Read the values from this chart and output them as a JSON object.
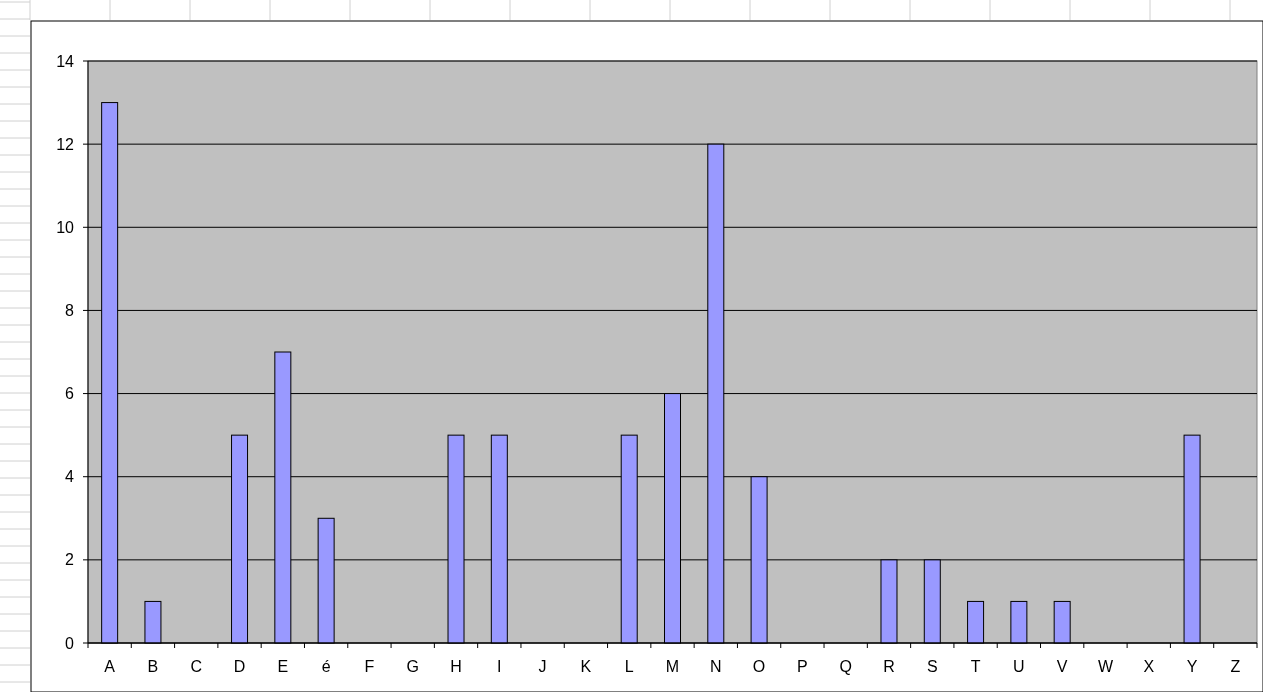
{
  "chart_data": {
    "type": "bar",
    "categories": [
      "A",
      "B",
      "C",
      "D",
      "E",
      "é",
      "F",
      "G",
      "H",
      "I",
      "J",
      "K",
      "L",
      "M",
      "N",
      "O",
      "P",
      "Q",
      "R",
      "S",
      "T",
      "U",
      "V",
      "W",
      "X",
      "Y",
      "Z"
    ],
    "values": [
      13,
      1,
      0,
      5,
      7,
      3,
      0,
      0,
      5,
      5,
      0,
      0,
      5,
      6,
      12,
      4,
      0,
      0,
      2,
      2,
      1,
      1,
      1,
      0,
      0,
      5,
      0
    ],
    "color": "#9999ff",
    "ylim": [
      0,
      14
    ],
    "yticks": [
      0,
      2,
      4,
      6,
      8,
      10,
      12,
      14
    ],
    "grid": "y"
  }
}
